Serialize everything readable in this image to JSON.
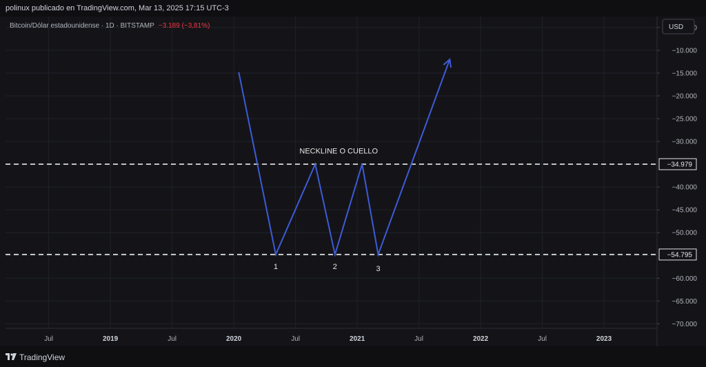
{
  "header": {
    "publisher": "polinux publicado en TradingView.com, Mar 13, 2025 17:15 UTC-3"
  },
  "symbol": {
    "name": "Bitcoin/Dólar estadounidense · 1D · BITSTAMP",
    "change": "−3.189 (−3,81%)"
  },
  "currency_button": "USD",
  "footer": {
    "brand": "TradingView",
    "logo_icon": "tradingview-logo-icon"
  },
  "chart_data": {
    "type": "line",
    "title": "",
    "ylim": [
      -71,
      -2.6
    ],
    "y_ticks": [
      {
        "v": -5,
        "label": "−5.000"
      },
      {
        "v": -10,
        "label": "−10.000"
      },
      {
        "v": -15,
        "label": "−15.000"
      },
      {
        "v": -20,
        "label": "−20.000"
      },
      {
        "v": -25,
        "label": "−25.000"
      },
      {
        "v": -30,
        "label": "−30.000"
      },
      {
        "v": -40,
        "label": "−40.000"
      },
      {
        "v": -45,
        "label": "−45.000"
      },
      {
        "v": -50,
        "label": "−50.000"
      },
      {
        "v": -60,
        "label": "−60.000"
      },
      {
        "v": -65,
        "label": "−65.000"
      },
      {
        "v": -70,
        "label": "−70.000"
      }
    ],
    "x_ticks": [
      {
        "t": 2018.5,
        "label": "Jul",
        "bold": false
      },
      {
        "t": 2019.0,
        "label": "2019",
        "bold": true
      },
      {
        "t": 2019.5,
        "label": "Jul",
        "bold": false
      },
      {
        "t": 2020.0,
        "label": "2020",
        "bold": true
      },
      {
        "t": 2020.5,
        "label": "Jul",
        "bold": false
      },
      {
        "t": 2021.0,
        "label": "2021",
        "bold": true
      },
      {
        "t": 2021.5,
        "label": "Jul",
        "bold": false
      },
      {
        "t": 2022.0,
        "label": "2022",
        "bold": true
      },
      {
        "t": 2022.5,
        "label": "Jul",
        "bold": false
      },
      {
        "t": 2023.0,
        "label": "2023",
        "bold": true
      }
    ],
    "xlim": [
      2018.15,
      2023.43
    ],
    "pattern_line": {
      "color": "#3d5bd8",
      "points": [
        [
          2020.04,
          -14.8
        ],
        [
          2020.34,
          -54.795
        ],
        [
          2020.66,
          -34.979
        ],
        [
          2020.82,
          -54.795
        ],
        [
          2021.04,
          -34.979
        ],
        [
          2021.17,
          -54.795
        ],
        [
          2021.75,
          -12.0
        ]
      ],
      "arrow_end": true
    },
    "levels": [
      {
        "value": -34.979,
        "label": "−34.979",
        "color": "#ffffff",
        "style": "dashed"
      },
      {
        "value": -54.795,
        "label": "−54.795",
        "color": "#ffffff",
        "style": "dashed"
      }
    ],
    "annotations": [
      {
        "text": "NECKLINE O CUELLO",
        "t": 2020.85,
        "v": -32.0
      },
      {
        "text": "1",
        "t": 2020.34,
        "v": -57.4
      },
      {
        "text": "2",
        "t": 2020.82,
        "v": -57.4
      },
      {
        "text": "3",
        "t": 2021.17,
        "v": -57.8
      }
    ],
    "grid": true
  }
}
